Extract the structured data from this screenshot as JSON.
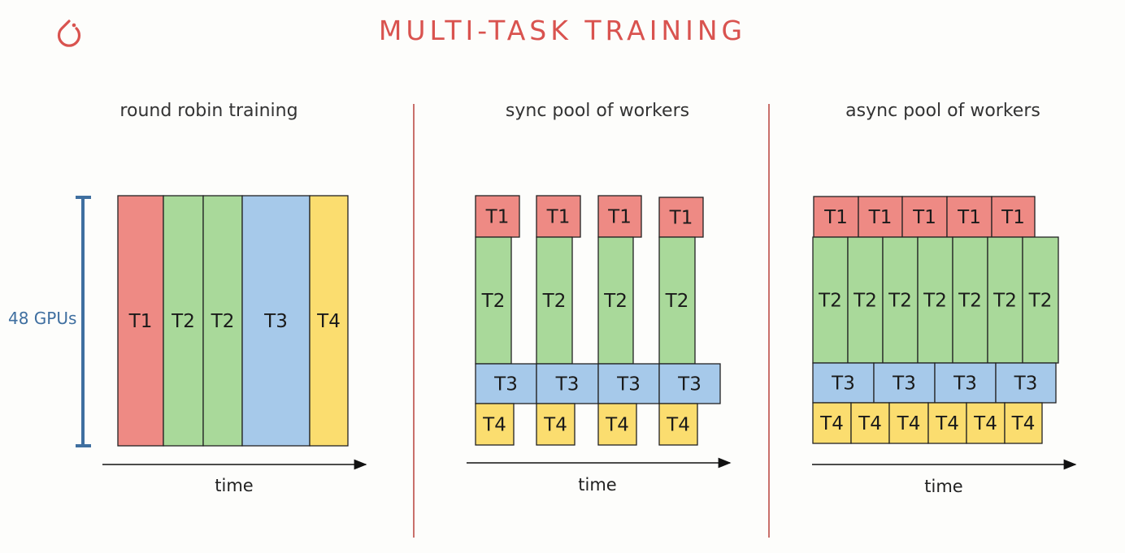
{
  "title": "MULTI-TASK TRAINING",
  "colors": {
    "accent": "#d9534f",
    "gpu_axis": "#3f6fa0",
    "T1": "#ee8a84",
    "T2": "#a9d99a",
    "T3": "#a6c9ea",
    "T4": "#fbdd6f",
    "border": "#222222",
    "divider": "#c9706b"
  },
  "logo": {
    "icon": "pytorch-logo-icon"
  },
  "gpu_label": "48 GPUs",
  "panels": [
    {
      "title": "round robin training",
      "time_label": "time"
    },
    {
      "title": "sync pool of workers",
      "time_label": "time"
    },
    {
      "title": "async pool of workers",
      "time_label": "time"
    }
  ],
  "tasks": {
    "T1": "T1",
    "T2": "T2",
    "T3": "T3",
    "T4": "T4"
  }
}
